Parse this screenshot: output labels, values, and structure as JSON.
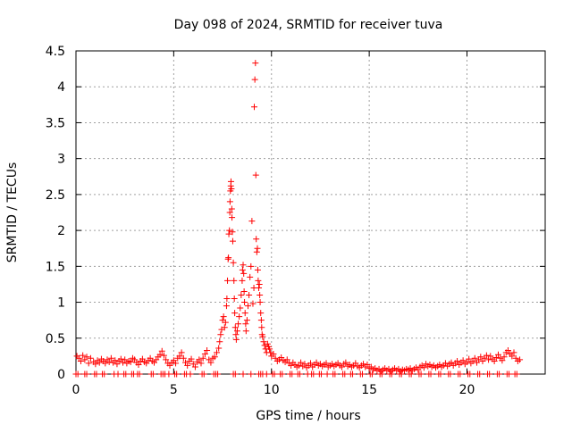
{
  "chart_data": {
    "type": "scatter",
    "title": "Day 098 of 2024, SRMTID for receiver tuva",
    "xlabel": "GPS time / hours",
    "ylabel": "SRMTID / TECUs",
    "xlim": [
      0,
      24
    ],
    "ylim": [
      0,
      4.5
    ],
    "grid": true,
    "marker": "+",
    "marker_color": "#ff0000",
    "x_ticks": [
      0,
      5,
      10,
      15,
      20
    ],
    "x_tick_labels": [
      "0",
      "5",
      "10",
      "15",
      "20"
    ],
    "y_ticks": [
      0,
      0.5,
      1,
      1.5,
      2,
      2.5,
      3,
      3.5,
      4,
      4.5
    ],
    "y_tick_labels": [
      "0",
      "0.5",
      "1",
      "1.5",
      "2",
      "2.5",
      "3",
      "3.5",
      "4",
      "4.5"
    ],
    "series": [
      {
        "name": "SRMTID",
        "points": [
          [
            0.05,
            0.25
          ],
          [
            0.15,
            0.22
          ],
          [
            0.25,
            0.18
          ],
          [
            0.35,
            0.26
          ],
          [
            0.45,
            0.2
          ],
          [
            0.55,
            0.24
          ],
          [
            0.65,
            0.15
          ],
          [
            0.75,
            0.22
          ],
          [
            0.9,
            0.17
          ],
          [
            1.0,
            0.14
          ],
          [
            1.1,
            0.19
          ],
          [
            1.2,
            0.16
          ],
          [
            1.3,
            0.21
          ],
          [
            1.4,
            0.18
          ],
          [
            1.5,
            0.15
          ],
          [
            1.6,
            0.2
          ],
          [
            1.7,
            0.17
          ],
          [
            1.8,
            0.22
          ],
          [
            1.9,
            0.16
          ],
          [
            2.0,
            0.19
          ],
          [
            2.1,
            0.14
          ],
          [
            2.2,
            0.18
          ],
          [
            2.3,
            0.21
          ],
          [
            2.4,
            0.16
          ],
          [
            2.5,
            0.2
          ],
          [
            2.6,
            0.15
          ],
          [
            2.7,
            0.18
          ],
          [
            2.8,
            0.17
          ],
          [
            2.9,
            0.22
          ],
          [
            3.0,
            0.2
          ],
          [
            3.1,
            0.16
          ],
          [
            3.2,
            0.13
          ],
          [
            3.3,
            0.18
          ],
          [
            3.4,
            0.21
          ],
          [
            3.5,
            0.17
          ],
          [
            3.6,
            0.15
          ],
          [
            3.7,
            0.19
          ],
          [
            3.8,
            0.22
          ],
          [
            3.9,
            0.18
          ],
          [
            4.0,
            0.16
          ],
          [
            4.1,
            0.2
          ],
          [
            4.2,
            0.24
          ],
          [
            4.3,
            0.27
          ],
          [
            4.4,
            0.32
          ],
          [
            4.5,
            0.26
          ],
          [
            4.6,
            0.2
          ],
          [
            4.7,
            0.15
          ],
          [
            4.8,
            0.12
          ],
          [
            4.9,
            0.16
          ],
          [
            5.0,
            0.19
          ],
          [
            5.1,
            0.15
          ],
          [
            5.2,
            0.22
          ],
          [
            5.3,
            0.25
          ],
          [
            5.4,
            0.3
          ],
          [
            5.5,
            0.22
          ],
          [
            5.6,
            0.16
          ],
          [
            5.7,
            0.12
          ],
          [
            5.8,
            0.18
          ],
          [
            5.9,
            0.21
          ],
          [
            6.0,
            0.14
          ],
          [
            6.1,
            0.1
          ],
          [
            6.2,
            0.17
          ],
          [
            6.3,
            0.2
          ],
          [
            6.4,
            0.15
          ],
          [
            6.5,
            0.22
          ],
          [
            6.6,
            0.28
          ],
          [
            6.7,
            0.33
          ],
          [
            6.8,
            0.2
          ],
          [
            6.9,
            0.16
          ],
          [
            7.0,
            0.22
          ],
          [
            7.1,
            0.24
          ],
          [
            7.2,
            0.3
          ],
          [
            7.3,
            0.36
          ],
          [
            7.35,
            0.45
          ],
          [
            7.4,
            0.55
          ],
          [
            7.45,
            0.62
          ],
          [
            7.5,
            0.75
          ],
          [
            7.55,
            0.8
          ],
          [
            7.6,
            0.65
          ],
          [
            7.65,
            0.72
          ],
          [
            7.7,
            0.95
          ],
          [
            7.72,
            1.05
          ],
          [
            7.75,
            1.3
          ],
          [
            7.78,
            1.6
          ],
          [
            7.8,
            1.62
          ],
          [
            7.82,
            1.95
          ],
          [
            7.85,
            2.0
          ],
          [
            7.87,
            2.25
          ],
          [
            7.88,
            2.4
          ],
          [
            7.9,
            2.55
          ],
          [
            7.92,
            2.62
          ],
          [
            7.93,
            2.68
          ],
          [
            7.95,
            2.58
          ],
          [
            7.97,
            2.3
          ],
          [
            7.98,
            2.18
          ],
          [
            8.0,
            1.98
          ],
          [
            8.02,
            1.85
          ],
          [
            8.05,
            1.55
          ],
          [
            8.08,
            1.3
          ],
          [
            8.1,
            1.05
          ],
          [
            8.12,
            0.85
          ],
          [
            8.15,
            0.65
          ],
          [
            8.18,
            0.55
          ],
          [
            8.2,
            0.48
          ],
          [
            8.25,
            0.6
          ],
          [
            8.3,
            0.7
          ],
          [
            8.35,
            0.8
          ],
          [
            8.4,
            0.92
          ],
          [
            8.45,
            1.1
          ],
          [
            8.5,
            1.3
          ],
          [
            8.52,
            1.45
          ],
          [
            8.55,
            1.52
          ],
          [
            8.58,
            1.4
          ],
          [
            8.6,
            1.15
          ],
          [
            8.62,
            1.0
          ],
          [
            8.65,
            0.85
          ],
          [
            8.68,
            0.7
          ],
          [
            8.7,
            0.6
          ],
          [
            8.75,
            0.75
          ],
          [
            8.8,
            0.95
          ],
          [
            8.85,
            1.1
          ],
          [
            8.9,
            1.35
          ],
          [
            8.95,
            1.5
          ],
          [
            9.0,
            2.13
          ],
          [
            9.05,
            0.98
          ],
          [
            9.1,
            1.2
          ],
          [
            9.12,
            3.72
          ],
          [
            9.15,
            4.1
          ],
          [
            9.18,
            4.33
          ],
          [
            9.2,
            2.77
          ],
          [
            9.22,
            1.88
          ],
          [
            9.25,
            1.7
          ],
          [
            9.28,
            1.75
          ],
          [
            9.3,
            1.45
          ],
          [
            9.32,
            1.3
          ],
          [
            9.35,
            1.2
          ],
          [
            9.38,
            1.25
          ],
          [
            9.4,
            1.1
          ],
          [
            9.42,
            1.0
          ],
          [
            9.45,
            0.85
          ],
          [
            9.48,
            0.75
          ],
          [
            9.5,
            0.65
          ],
          [
            9.52,
            0.55
          ],
          [
            9.55,
            0.52
          ],
          [
            9.6,
            0.45
          ],
          [
            9.65,
            0.4
          ],
          [
            9.7,
            0.35
          ],
          [
            9.75,
            0.3
          ],
          [
            9.8,
            0.42
          ],
          [
            9.85,
            0.38
          ],
          [
            9.9,
            0.35
          ],
          [
            9.95,
            0.3
          ],
          [
            10.0,
            0.25
          ],
          [
            10.1,
            0.28
          ],
          [
            10.2,
            0.22
          ],
          [
            10.3,
            0.18
          ],
          [
            10.4,
            0.2
          ],
          [
            10.5,
            0.23
          ],
          [
            10.6,
            0.19
          ],
          [
            10.7,
            0.17
          ],
          [
            10.8,
            0.2
          ],
          [
            10.9,
            0.15
          ],
          [
            11.0,
            0.12
          ],
          [
            11.1,
            0.16
          ],
          [
            11.2,
            0.13
          ],
          [
            11.3,
            0.1
          ],
          [
            11.4,
            0.12
          ],
          [
            11.5,
            0.16
          ],
          [
            11.6,
            0.11
          ],
          [
            11.7,
            0.14
          ],
          [
            11.8,
            0.09
          ],
          [
            11.9,
            0.12
          ],
          [
            12.0,
            0.15
          ],
          [
            12.1,
            0.1
          ],
          [
            12.2,
            0.13
          ],
          [
            12.3,
            0.16
          ],
          [
            12.4,
            0.12
          ],
          [
            12.5,
            0.14
          ],
          [
            12.6,
            0.11
          ],
          [
            12.7,
            0.13
          ],
          [
            12.8,
            0.15
          ],
          [
            12.9,
            0.1
          ],
          [
            13.0,
            0.12
          ],
          [
            13.1,
            0.14
          ],
          [
            13.2,
            0.11
          ],
          [
            13.3,
            0.13
          ],
          [
            13.4,
            0.15
          ],
          [
            13.5,
            0.12
          ],
          [
            13.6,
            0.1
          ],
          [
            13.7,
            0.14
          ],
          [
            13.8,
            0.16
          ],
          [
            13.9,
            0.11
          ],
          [
            14.0,
            0.13
          ],
          [
            14.1,
            0.1
          ],
          [
            14.2,
            0.12
          ],
          [
            14.3,
            0.15
          ],
          [
            14.4,
            0.11
          ],
          [
            14.5,
            0.09
          ],
          [
            14.6,
            0.12
          ],
          [
            14.7,
            0.14
          ],
          [
            14.8,
            0.1
          ],
          [
            14.9,
            0.13
          ],
          [
            15.0,
            0.08
          ],
          [
            15.1,
            0.1
          ],
          [
            15.2,
            0.06
          ],
          [
            15.3,
            0.08
          ],
          [
            15.4,
            0.05
          ],
          [
            15.5,
            0.07
          ],
          [
            15.6,
            0.04
          ],
          [
            15.7,
            0.06
          ],
          [
            15.8,
            0.08
          ],
          [
            15.9,
            0.05
          ],
          [
            16.0,
            0.07
          ],
          [
            16.1,
            0.04
          ],
          [
            16.2,
            0.06
          ],
          [
            16.3,
            0.08
          ],
          [
            16.4,
            0.05
          ],
          [
            16.5,
            0.07
          ],
          [
            16.6,
            0.04
          ],
          [
            16.7,
            0.06
          ],
          [
            16.8,
            0.05
          ],
          [
            16.9,
            0.07
          ],
          [
            17.0,
            0.06
          ],
          [
            17.1,
            0.08
          ],
          [
            17.2,
            0.05
          ],
          [
            17.3,
            0.07
          ],
          [
            17.4,
            0.09
          ],
          [
            17.5,
            0.06
          ],
          [
            17.6,
            0.1
          ],
          [
            17.7,
            0.12
          ],
          [
            17.8,
            0.09
          ],
          [
            17.9,
            0.14
          ],
          [
            18.0,
            0.11
          ],
          [
            18.1,
            0.13
          ],
          [
            18.2,
            0.1
          ],
          [
            18.3,
            0.12
          ],
          [
            18.4,
            0.09
          ],
          [
            18.5,
            0.11
          ],
          [
            18.6,
            0.13
          ],
          [
            18.7,
            0.1
          ],
          [
            18.8,
            0.12
          ],
          [
            18.9,
            0.15
          ],
          [
            19.0,
            0.11
          ],
          [
            19.1,
            0.14
          ],
          [
            19.2,
            0.16
          ],
          [
            19.3,
            0.12
          ],
          [
            19.4,
            0.15
          ],
          [
            19.5,
            0.18
          ],
          [
            19.6,
            0.13
          ],
          [
            19.7,
            0.16
          ],
          [
            19.8,
            0.19
          ],
          [
            19.9,
            0.14
          ],
          [
            20.0,
            0.17
          ],
          [
            20.1,
            0.21
          ],
          [
            20.2,
            0.15
          ],
          [
            20.3,
            0.18
          ],
          [
            20.4,
            0.22
          ],
          [
            20.5,
            0.16
          ],
          [
            20.6,
            0.2
          ],
          [
            20.7,
            0.24
          ],
          [
            20.8,
            0.18
          ],
          [
            20.9,
            0.22
          ],
          [
            21.0,
            0.26
          ],
          [
            21.1,
            0.2
          ],
          [
            21.2,
            0.25
          ],
          [
            21.3,
            0.21
          ],
          [
            21.4,
            0.18
          ],
          [
            21.5,
            0.23
          ],
          [
            21.6,
            0.27
          ],
          [
            21.7,
            0.22
          ],
          [
            21.8,
            0.19
          ],
          [
            21.9,
            0.24
          ],
          [
            22.0,
            0.3
          ],
          [
            22.1,
            0.33
          ],
          [
            22.2,
            0.28
          ],
          [
            22.3,
            0.25
          ],
          [
            22.4,
            0.3
          ],
          [
            22.5,
            0.22
          ],
          [
            22.6,
            0.18
          ],
          [
            22.7,
            0.2
          ]
        ],
        "zero_points": [
          0.0,
          0.1,
          0.45,
          0.55,
          0.95,
          1.05,
          1.35,
          1.45,
          1.95,
          2.15,
          2.45,
          2.55,
          2.85,
          2.95,
          3.15,
          3.25,
          3.85,
          3.95,
          4.35,
          4.45,
          4.55,
          4.75,
          5.05,
          5.15,
          5.55,
          5.65,
          5.85,
          6.45,
          6.55,
          7.05,
          7.15,
          7.25,
          8.05,
          8.15,
          8.55,
          8.95,
          9.35,
          9.45,
          9.55,
          9.75,
          10.05,
          10.15,
          10.45,
          10.55,
          10.95,
          11.05,
          11.35,
          11.45,
          11.85,
          12.05,
          12.15,
          12.45,
          12.55,
          12.85,
          13.15,
          13.25,
          13.65,
          13.75,
          14.05,
          14.15,
          14.55,
          14.65,
          15.05,
          15.15,
          15.55,
          15.65,
          16.05,
          16.15,
          16.55,
          16.65,
          17.05,
          17.15,
          17.55,
          17.65,
          18.05,
          18.15,
          18.55,
          18.65,
          19.05,
          19.15,
          19.55,
          19.65,
          20.05,
          20.15,
          20.55,
          20.65,
          21.05,
          21.15,
          21.55,
          21.65,
          22.05,
          22.15,
          22.45,
          22.55
        ]
      }
    ]
  }
}
